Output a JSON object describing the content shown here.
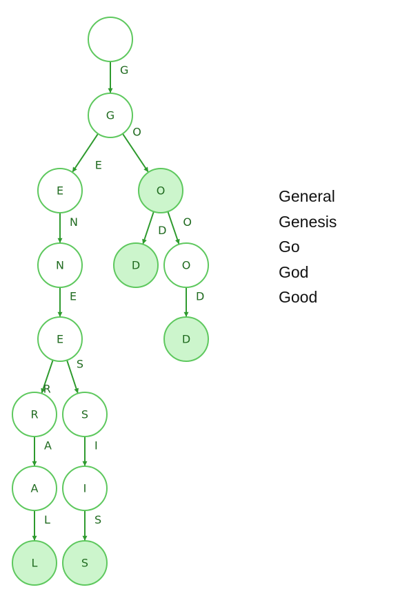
{
  "trie": {
    "nodes": [
      {
        "id": "root",
        "label": "",
        "terminal": false
      },
      {
        "id": "g",
        "label": "G",
        "terminal": false
      },
      {
        "id": "ge",
        "label": "E",
        "terminal": false
      },
      {
        "id": "gen",
        "label": "N",
        "terminal": false
      },
      {
        "id": "gene",
        "label": "E",
        "terminal": false
      },
      {
        "id": "gener",
        "label": "R",
        "terminal": false
      },
      {
        "id": "genera",
        "label": "A",
        "terminal": false
      },
      {
        "id": "general",
        "label": "L",
        "terminal": true
      },
      {
        "id": "genes",
        "label": "S",
        "terminal": false
      },
      {
        "id": "genesi",
        "label": "I",
        "terminal": false
      },
      {
        "id": "genesis",
        "label": "S",
        "terminal": true
      },
      {
        "id": "go",
        "label": "O",
        "terminal": true
      },
      {
        "id": "god",
        "label": "D",
        "terminal": true
      },
      {
        "id": "goo",
        "label": "O",
        "terminal": false
      },
      {
        "id": "good",
        "label": "D",
        "terminal": true
      }
    ],
    "edges": [
      {
        "from": "root",
        "to": "g",
        "label": "G"
      },
      {
        "from": "g",
        "to": "ge",
        "label": "E"
      },
      {
        "from": "g",
        "to": "go",
        "label": "O"
      },
      {
        "from": "ge",
        "to": "gen",
        "label": "N"
      },
      {
        "from": "gen",
        "to": "gene",
        "label": "E"
      },
      {
        "from": "gene",
        "to": "gener",
        "label": "R"
      },
      {
        "from": "gene",
        "to": "genes",
        "label": "S"
      },
      {
        "from": "gener",
        "to": "genera",
        "label": "A"
      },
      {
        "from": "genera",
        "to": "general",
        "label": "L"
      },
      {
        "from": "genes",
        "to": "genesi",
        "label": "I"
      },
      {
        "from": "genesi",
        "to": "genesis",
        "label": "S"
      },
      {
        "from": "go",
        "to": "god",
        "label": "D"
      },
      {
        "from": "go",
        "to": "goo",
        "label": "O"
      },
      {
        "from": "goo",
        "to": "good",
        "label": "D"
      }
    ]
  },
  "words": [
    "General",
    "Genesis",
    "Go",
    "God",
    "Good"
  ],
  "colors": {
    "edge": "#2e9a2e",
    "node_border": "#5ec85e",
    "terminal_fill": "#ccf5cc",
    "text": "#1f6a1f"
  }
}
